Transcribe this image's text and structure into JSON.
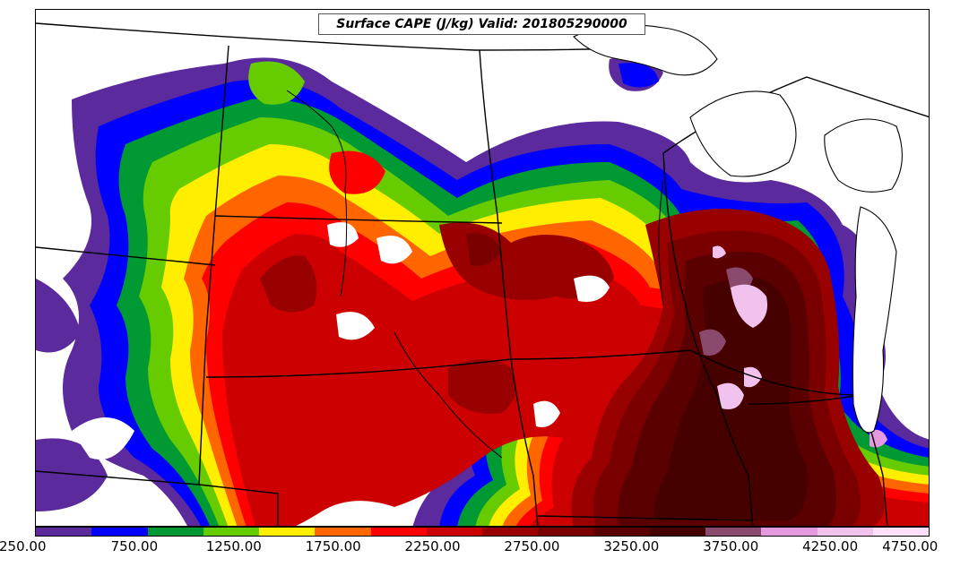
{
  "title": "Surface CAPE (J/kg) Valid: 201805290000",
  "colorbar": {
    "colors": [
      "#5b2a9c",
      "#0000ff",
      "#009933",
      "#66cc00",
      "#ffee00",
      "#ff6600",
      "#ff0000",
      "#cc0000",
      "#990000",
      "#7a0000",
      "#5a0000",
      "#470000",
      "#8a4a6e",
      "#e59ae0",
      "#f2c2ee",
      "#ffe0fb"
    ],
    "tick_labels": [
      "250.00",
      "750.00",
      "1250.00",
      "1750.00",
      "2250.00",
      "2750.00",
      "3250.00",
      "3750.00",
      "4250.00",
      "4750.00"
    ]
  }
}
